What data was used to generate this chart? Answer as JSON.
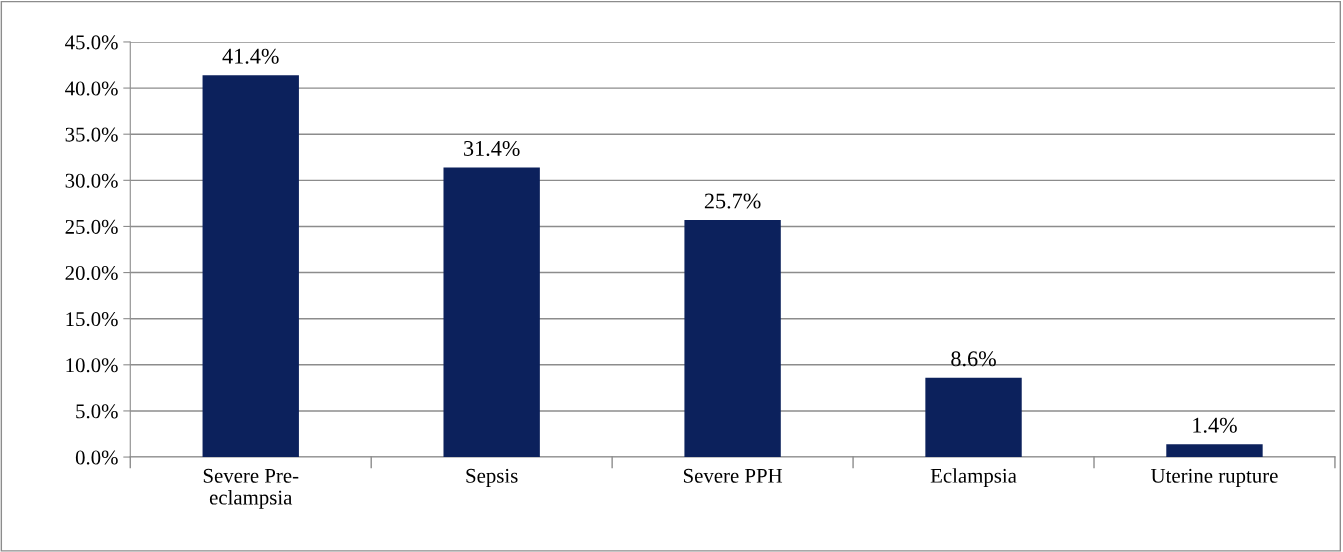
{
  "chart_data": {
    "type": "bar",
    "categories": [
      "Severe Pre-\neclampsia",
      "Sepsis",
      "Severe PPH",
      "Eclampsia",
      "Uterine rupture"
    ],
    "values": [
      41.4,
      31.4,
      25.7,
      8.6,
      1.4
    ],
    "value_labels": [
      "41.4%",
      "31.4%",
      "25.7%",
      "8.6%",
      "1.4%"
    ],
    "color": "#0c215c",
    "ylim": [
      0,
      45
    ],
    "yticks": [
      {
        "value": 0,
        "label": "0.0%"
      },
      {
        "value": 5,
        "label": "5.0%"
      },
      {
        "value": 10,
        "label": "10.0%"
      },
      {
        "value": 15,
        "label": "15.0%"
      },
      {
        "value": 20,
        "label": "20.0%"
      },
      {
        "value": 25,
        "label": "25.0%"
      },
      {
        "value": 30,
        "label": "30.0%"
      },
      {
        "value": 35,
        "label": "35.0%"
      },
      {
        "value": 40,
        "label": "40.0%"
      },
      {
        "value": 45,
        "label": "45.0%"
      }
    ],
    "grid": "y",
    "legend": false
  }
}
